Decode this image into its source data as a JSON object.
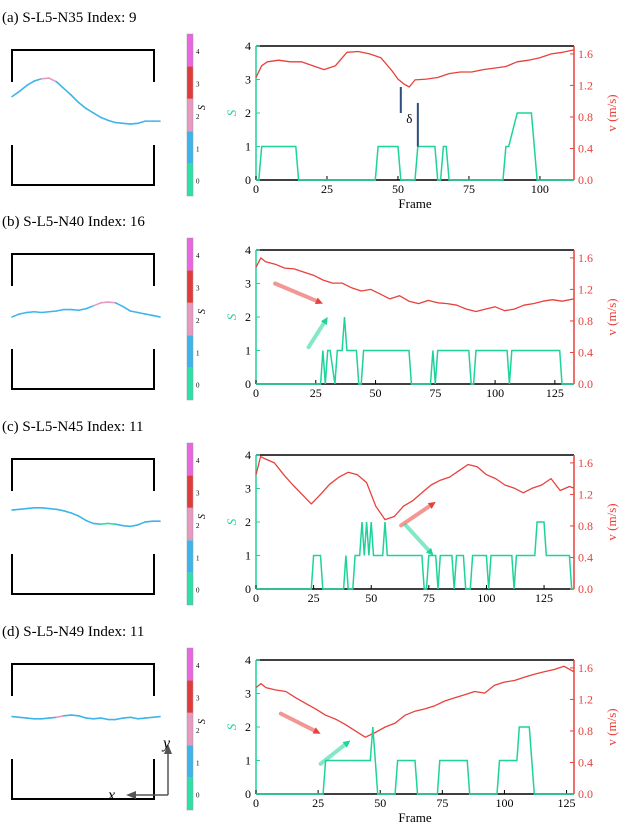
{
  "colors": {
    "s_series": "#1ed39a",
    "v_series": "#e8413b",
    "frame": "#000000",
    "delta_marker": "#2d4e7a",
    "colorbar": [
      "#2ee0a8",
      "#3db5ea",
      "#e79ac0",
      "#e23b3b",
      "#e866e0"
    ]
  },
  "colorbar_ticks": [
    "0",
    "1",
    "2",
    "3",
    "4"
  ],
  "colorbar_label": "S",
  "axis_icon": {
    "x_label": "x",
    "y_label": "y"
  },
  "panels": [
    {
      "title": "(a) S-L5-N35  Index: 9",
      "has_delta": true,
      "delta_label": "δ",
      "arrows": [],
      "chart_data": {
        "type": "line",
        "xlabel": "Frame",
        "ylabel_left": "S",
        "ylabel_right": "v (m/s)",
        "xlim": [
          0,
          112
        ],
        "xticks": [
          0,
          25,
          50,
          75,
          100
        ],
        "ylim_left": [
          0,
          4
        ],
        "yticks_left": [
          0,
          1,
          2,
          3,
          4
        ],
        "ylim_right": [
          0,
          1.7
        ],
        "yticks_right": [
          "0.0",
          "0.4",
          "0.8",
          "1.2",
          "1.6"
        ],
        "series": [
          {
            "axis": "left",
            "x": [
              0,
              1,
              2,
              3,
              14,
              15,
              16,
              42,
              43,
              44,
              50,
              51,
              52,
              53,
              56,
              57,
              58,
              63,
              64,
              65,
              66,
              67,
              68,
              87,
              88,
              89,
              92,
              93,
              94,
              97,
              98,
              99,
              112
            ],
            "values": [
              0,
              0,
              1,
              1,
              1,
              0,
              0,
              0,
              1,
              1,
              1,
              0,
              0,
              0,
              0,
              1,
              1,
              1,
              0,
              0,
              1,
              1,
              0,
              0,
              1,
              1,
              2,
              2,
              2,
              2,
              1,
              0,
              0
            ]
          },
          {
            "axis": "right",
            "x": [
              0,
              2,
              4,
              8,
              12,
              16,
              20,
              24,
              28,
              32,
              36,
              40,
              44,
              48,
              50,
              52,
              54,
              56,
              60,
              64,
              68,
              72,
              76,
              80,
              84,
              88,
              92,
              96,
              100,
              104,
              108,
              112
            ],
            "values": [
              1.3,
              1.45,
              1.5,
              1.52,
              1.5,
              1.5,
              1.45,
              1.4,
              1.45,
              1.62,
              1.63,
              1.6,
              1.55,
              1.38,
              1.28,
              1.22,
              1.18,
              1.27,
              1.28,
              1.3,
              1.35,
              1.37,
              1.37,
              1.4,
              1.42,
              1.44,
              1.5,
              1.52,
              1.55,
              1.6,
              1.62,
              1.65
            ]
          }
        ]
      },
      "trace": {
        "xs": [
          0.0,
          0.05,
          0.1,
          0.15,
          0.2,
          0.25,
          0.3,
          0.35,
          0.4,
          0.45,
          0.5,
          0.55,
          0.6,
          0.65,
          0.7,
          0.75,
          0.8,
          0.85,
          0.9,
          0.95,
          1.0
        ],
        "ys": [
          0.52,
          0.45,
          0.37,
          0.31,
          0.28,
          0.27,
          0.32,
          0.41,
          0.5,
          0.6,
          0.68,
          0.74,
          0.8,
          0.84,
          0.87,
          0.88,
          0.89,
          0.88,
          0.85,
          0.85,
          0.85
        ],
        "states": [
          1,
          1,
          1,
          1,
          2,
          2,
          1,
          1,
          1,
          1,
          1,
          1,
          1,
          1,
          1,
          1,
          1,
          1,
          1,
          1,
          1
        ]
      }
    },
    {
      "title": "(b) S-L5-N40  Index: 16",
      "has_delta": false,
      "arrows": [
        "red-down",
        "green-up"
      ],
      "chart_data": {
        "type": "line",
        "xlabel": "",
        "ylabel_left": "S",
        "ylabel_right": "v (m/s)",
        "xlim": [
          0,
          133
        ],
        "xticks": [
          0,
          25,
          50,
          75,
          100,
          125
        ],
        "ylim_left": [
          0,
          4
        ],
        "yticks_left": [
          0,
          1,
          2,
          3,
          4
        ],
        "ylim_right": [
          0,
          1.7
        ],
        "yticks_right": [
          "0.0",
          "0.4",
          "0.8",
          "1.2",
          "1.6"
        ],
        "series": [
          {
            "axis": "left",
            "x": [
              0,
              27,
              28,
              29,
              30,
              31,
              33,
              34,
              35,
              36,
              37,
              38,
              39,
              40,
              41,
              42,
              43,
              44,
              45,
              46,
              64,
              65,
              66,
              73,
              74,
              75,
              76,
              89,
              90,
              91,
              92,
              105,
              106,
              107,
              108,
              127,
              128,
              133
            ],
            "values": [
              0,
              0,
              1,
              0,
              1,
              1,
              0,
              1,
              1,
              1,
              2,
              1,
              1,
              1,
              1,
              1,
              0,
              0,
              1,
              1,
              1,
              0,
              0,
              0,
              1,
              0,
              1,
              1,
              0,
              0,
              1,
              1,
              0,
              1,
              1,
              1,
              0,
              0
            ]
          },
          {
            "axis": "right",
            "x": [
              0,
              2,
              4,
              8,
              12,
              16,
              20,
              24,
              28,
              32,
              36,
              40,
              44,
              48,
              52,
              56,
              60,
              64,
              68,
              72,
              76,
              80,
              84,
              88,
              92,
              96,
              100,
              104,
              108,
              112,
              116,
              120,
              124,
              128,
              133
            ],
            "values": [
              1.48,
              1.6,
              1.55,
              1.52,
              1.47,
              1.46,
              1.42,
              1.38,
              1.32,
              1.28,
              1.28,
              1.22,
              1.18,
              1.2,
              1.14,
              1.08,
              1.12,
              1.05,
              1.02,
              1.06,
              1.03,
              1.02,
              1.0,
              0.95,
              0.92,
              0.95,
              0.98,
              0.93,
              0.95,
              1.0,
              1.02,
              1.05,
              1.07,
              1.05,
              1.08
            ]
          }
        ]
      },
      "trace": {
        "xs": [
          0.0,
          0.05,
          0.1,
          0.15,
          0.2,
          0.25,
          0.3,
          0.35,
          0.4,
          0.45,
          0.5,
          0.55,
          0.6,
          0.65,
          0.7,
          0.75,
          0.8,
          0.85,
          0.9,
          0.95,
          1.0
        ],
        "ys": [
          0.74,
          0.7,
          0.68,
          0.67,
          0.68,
          0.67,
          0.66,
          0.64,
          0.64,
          0.65,
          0.63,
          0.59,
          0.55,
          0.54,
          0.55,
          0.6,
          0.66,
          0.68,
          0.7,
          0.72,
          0.74
        ],
        "states": [
          1,
          1,
          1,
          1,
          1,
          1,
          1,
          1,
          1,
          1,
          1,
          2,
          2,
          2,
          1,
          1,
          1,
          1,
          1,
          1,
          1
        ]
      }
    },
    {
      "title": "(c) S-L5-N45  Index: 11",
      "has_delta": false,
      "arrows": [
        "red-up",
        "green-down"
      ],
      "chart_data": {
        "type": "line",
        "xlabel": "",
        "ylabel_left": "S",
        "ylabel_right": "v (m/s)",
        "xlim": [
          0,
          138
        ],
        "xticks": [
          0,
          25,
          50,
          75,
          100,
          125
        ],
        "ylim_left": [
          0,
          4
        ],
        "yticks_left": [
          0,
          1,
          2,
          3,
          4
        ],
        "ylim_right": [
          0,
          1.7
        ],
        "yticks_right": [
          "0.0",
          "0.4",
          "0.8",
          "1.2",
          "1.6"
        ],
        "series": [
          {
            "axis": "left",
            "x": [
              0,
              24,
              25,
              26,
              28,
              29,
              38,
              39,
              40,
              42,
              43,
              44,
              45,
              46,
              47,
              48,
              49,
              50,
              51,
              52,
              55,
              56,
              57,
              58,
              60,
              72,
              73,
              74,
              75,
              76,
              77,
              78,
              79,
              80,
              81,
              85,
              86,
              87,
              90,
              91,
              93,
              94,
              95,
              100,
              101,
              102,
              103,
              111,
              112,
              113,
              114,
              121,
              122,
              123,
              125,
              126,
              136,
              137,
              138
            ],
            "values": [
              0,
              0,
              1,
              1,
              1,
              0,
              0,
              1,
              0,
              0,
              1,
              1,
              1,
              2,
              1,
              2,
              1,
              2,
              1,
              1,
              1,
              2,
              1,
              1,
              1,
              1,
              0,
              0,
              1,
              1,
              1,
              1,
              0,
              1,
              1,
              1,
              0,
              1,
              1,
              0,
              0,
              1,
              1,
              1,
              0,
              1,
              1,
              1,
              0,
              1,
              1,
              1,
              2,
              2,
              2,
              1,
              1,
              0,
              0
            ]
          },
          {
            "axis": "right",
            "x": [
              0,
              2,
              4,
              8,
              12,
              16,
              20,
              24,
              28,
              32,
              36,
              40,
              44,
              48,
              52,
              56,
              60,
              64,
              68,
              72,
              76,
              80,
              84,
              88,
              92,
              96,
              100,
              104,
              108,
              112,
              116,
              120,
              124,
              128,
              132,
              136,
              138
            ],
            "values": [
              1.45,
              1.68,
              1.65,
              1.6,
              1.45,
              1.32,
              1.2,
              1.08,
              1.2,
              1.33,
              1.42,
              1.48,
              1.45,
              1.35,
              1.05,
              0.88,
              0.92,
              1.05,
              1.12,
              1.22,
              1.32,
              1.38,
              1.42,
              1.5,
              1.58,
              1.55,
              1.45,
              1.4,
              1.32,
              1.28,
              1.22,
              1.28,
              1.32,
              1.4,
              1.25,
              1.3,
              1.28
            ]
          }
        ]
      },
      "trace": {
        "xs": [
          0.0,
          0.05,
          0.1,
          0.15,
          0.2,
          0.25,
          0.3,
          0.35,
          0.4,
          0.45,
          0.5,
          0.55,
          0.6,
          0.65,
          0.7,
          0.75,
          0.8,
          0.85,
          0.9,
          0.95,
          1.0
        ],
        "ys": [
          0.58,
          0.57,
          0.56,
          0.55,
          0.55,
          0.56,
          0.57,
          0.59,
          0.62,
          0.66,
          0.72,
          0.76,
          0.77,
          0.76,
          0.77,
          0.79,
          0.8,
          0.78,
          0.74,
          0.73,
          0.73
        ],
        "states": [
          1,
          1,
          1,
          1,
          1,
          1,
          1,
          1,
          1,
          1,
          1,
          1,
          0,
          0,
          1,
          1,
          1,
          1,
          1,
          1,
          1
        ]
      }
    },
    {
      "title": "(d) S-L5-N49 Index: 11",
      "has_delta": false,
      "arrows": [
        "red-down",
        "green-up"
      ],
      "chart_data": {
        "type": "line",
        "xlabel": "Frame",
        "ylabel_left": "S",
        "ylabel_right": "v (m/s)",
        "xlim": [
          0,
          128
        ],
        "xticks": [
          0,
          25,
          50,
          75,
          100,
          125
        ],
        "ylim_left": [
          0,
          4
        ],
        "yticks_left": [
          0,
          1,
          2,
          3,
          4
        ],
        "ylim_right": [
          0,
          1.7
        ],
        "yticks_right": [
          "0.0",
          "0.4",
          "0.8",
          "1.2",
          "1.6"
        ],
        "series": [
          {
            "axis": "left",
            "x": [
              0,
              27,
              28,
              29,
              45,
              46,
              47,
              48,
              49,
              50,
              56,
              57,
              58,
              64,
              65,
              66,
              73,
              74,
              75,
              85,
              86,
              87,
              97,
              98,
              99,
              105,
              106,
              110,
              111,
              112,
              128
            ],
            "values": [
              0,
              0,
              1,
              1,
              1,
              1,
              2,
              1,
              0,
              0,
              0,
              1,
              1,
              1,
              0,
              0,
              0,
              1,
              1,
              1,
              0,
              0,
              0,
              1,
              1,
              1,
              2,
              2,
              1,
              0,
              0
            ]
          },
          {
            "axis": "right",
            "x": [
              0,
              2,
              4,
              8,
              12,
              16,
              20,
              24,
              28,
              32,
              36,
              40,
              44,
              48,
              52,
              56,
              60,
              64,
              68,
              72,
              76,
              80,
              84,
              88,
              92,
              96,
              100,
              104,
              108,
              112,
              116,
              120,
              124,
              128
            ],
            "values": [
              1.35,
              1.4,
              1.35,
              1.32,
              1.3,
              1.22,
              1.15,
              1.08,
              1.0,
              0.95,
              0.88,
              0.8,
              0.72,
              0.78,
              0.85,
              0.9,
              1.0,
              1.05,
              1.08,
              1.12,
              1.18,
              1.22,
              1.26,
              1.3,
              1.28,
              1.38,
              1.42,
              1.44,
              1.48,
              1.52,
              1.55,
              1.58,
              1.62,
              1.55
            ]
          }
        ]
      },
      "trace": {
        "xs": [
          0.0,
          0.05,
          0.1,
          0.15,
          0.2,
          0.25,
          0.3,
          0.35,
          0.4,
          0.45,
          0.5,
          0.55,
          0.6,
          0.65,
          0.7,
          0.75,
          0.8,
          0.85,
          0.9,
          0.95,
          1.0
        ],
        "ys": [
          0.6,
          0.61,
          0.62,
          0.63,
          0.63,
          0.62,
          0.61,
          0.59,
          0.58,
          0.59,
          0.62,
          0.63,
          0.62,
          0.64,
          0.64,
          0.62,
          0.61,
          0.63,
          0.62,
          0.61,
          0.6
        ],
        "states": [
          1,
          1,
          1,
          1,
          1,
          1,
          2,
          1,
          1,
          1,
          1,
          1,
          1,
          1,
          1,
          1,
          1,
          1,
          1,
          1,
          1
        ]
      }
    }
  ]
}
